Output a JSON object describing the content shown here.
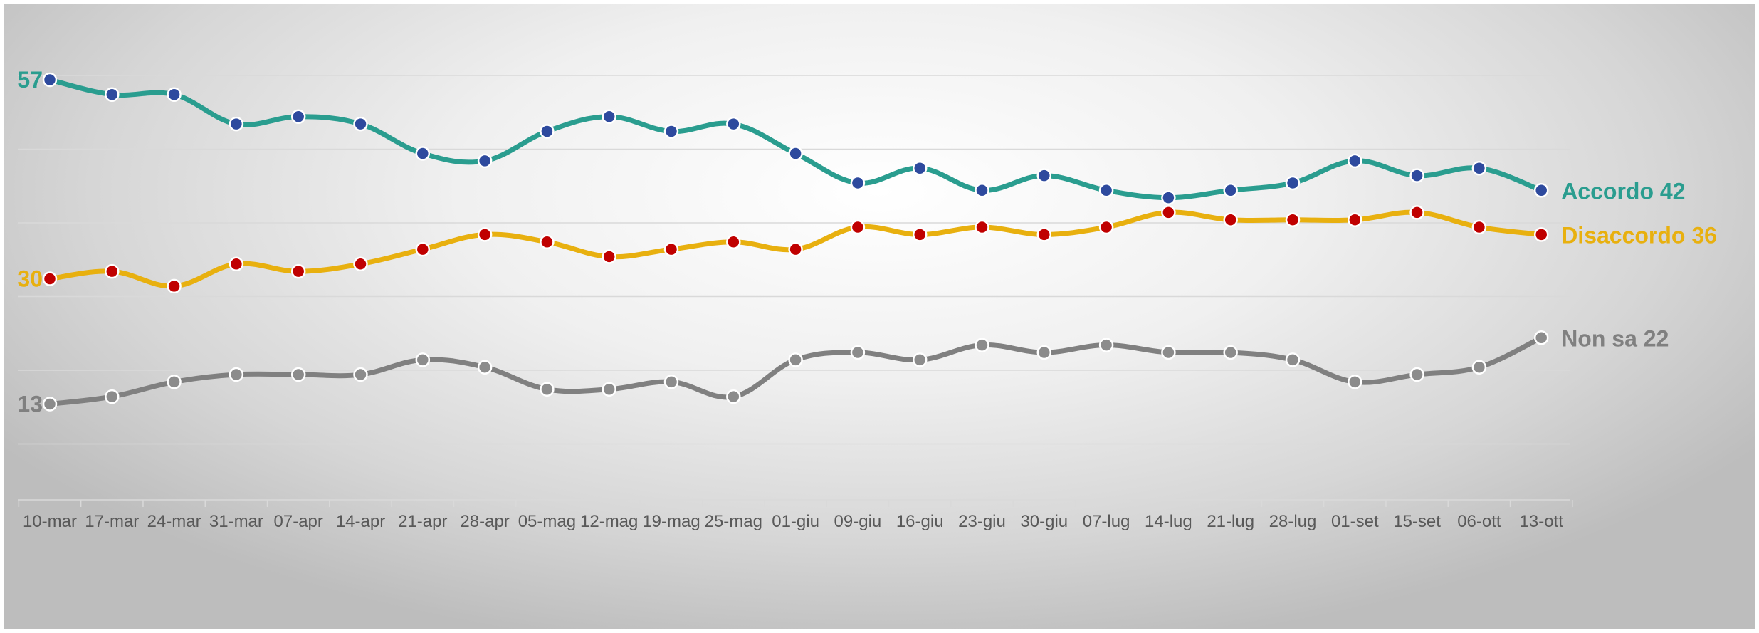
{
  "chart_data": {
    "type": "line",
    "title": "",
    "xlabel": "",
    "ylabel": "",
    "ylim": [
      0,
      65
    ],
    "grid": true,
    "categories": [
      "10-mar",
      "17-mar",
      "24-mar",
      "31-mar",
      "07-apr",
      "14-apr",
      "21-apr",
      "28-apr",
      "05-mag",
      "12-mag",
      "19-mag",
      "25-mag",
      "01-giu",
      "09-giu",
      "16-giu",
      "23-giu",
      "30-giu",
      "07-lug",
      "14-lug",
      "21-lug",
      "28-lug",
      "01-set",
      "15-set",
      "06-ott",
      "13-ott"
    ],
    "series": [
      {
        "name": "Accordo",
        "color": "#2a9d8f",
        "marker_color": "#2e4a9e",
        "start_label": "57",
        "end_label": "Accordo 42",
        "values": [
          57,
          55,
          55,
          51,
          52,
          51,
          47,
          46,
          50,
          52,
          50,
          51,
          47,
          43,
          45,
          42,
          44,
          42,
          41,
          42,
          43,
          46,
          44,
          45,
          42
        ]
      },
      {
        "name": "Disaccordo",
        "color": "#e8b00f",
        "marker_color": "#c00000",
        "start_label": "30",
        "end_label": "Disaccordo 36",
        "values": [
          30,
          31,
          29,
          32,
          31,
          32,
          34,
          36,
          35,
          33,
          34,
          35,
          34,
          37,
          36,
          37,
          36,
          37,
          39,
          38,
          38,
          38,
          39,
          37,
          36
        ]
      },
      {
        "name": "Non sa",
        "color": "#808080",
        "marker_color": "#8c8c8c",
        "start_label": "13",
        "end_label": "Non sa 22",
        "values": [
          13,
          14,
          16,
          17,
          17,
          17,
          19,
          18,
          15,
          15,
          16,
          14,
          19,
          20,
          19,
          21,
          20,
          21,
          20,
          20,
          19,
          16,
          17,
          18,
          22
        ]
      }
    ]
  }
}
